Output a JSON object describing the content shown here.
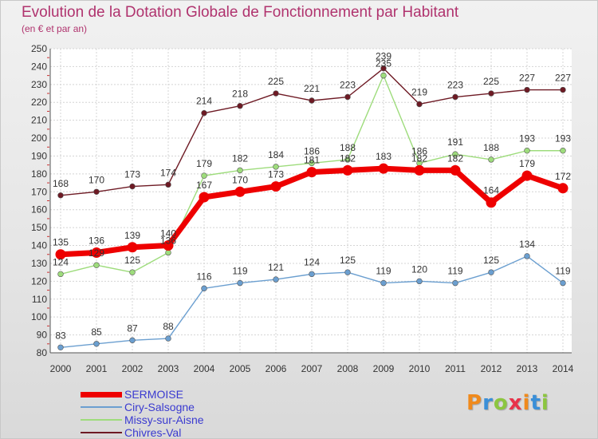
{
  "chart_data": {
    "type": "line",
    "title": "Evolution de la Dotation Globale de Fonctionnement par Habitant",
    "subtitle": "(en € et par an)",
    "xlabel": "",
    "ylabel": "",
    "categories": [
      "2000",
      "2001",
      "2002",
      "2003",
      "2004",
      "2005",
      "2006",
      "2007",
      "2008",
      "2009",
      "2010",
      "2011",
      "2012",
      "2013",
      "2014"
    ],
    "ylim": [
      80,
      250
    ],
    "yticks": [
      80,
      90,
      100,
      110,
      120,
      130,
      140,
      150,
      160,
      170,
      180,
      190,
      200,
      210,
      220,
      230,
      240,
      250
    ],
    "grid": true,
    "legend_position": "bottom-left",
    "series": [
      {
        "name": "Chivres-Val",
        "color": "#6e1a24",
        "values": [
          168,
          170,
          173,
          174,
          214,
          218,
          225,
          221,
          223,
          239,
          219,
          223,
          225,
          227,
          227
        ]
      },
      {
        "name": "Missy-sur-Aisne",
        "color": "#9edc7c",
        "values": [
          124,
          129,
          125,
          136,
          179,
          182,
          184,
          186,
          188,
          235,
          186,
          191,
          188,
          193,
          193
        ]
      },
      {
        "name": "Ciry-Salsogne",
        "color": "#6b9fd0",
        "values": [
          83,
          85,
          87,
          88,
          116,
          119,
          121,
          124,
          125,
          119,
          120,
          119,
          125,
          134,
          119
        ]
      },
      {
        "name": "SERMOISE",
        "color": "#ee0000",
        "values": [
          135,
          136,
          139,
          140,
          167,
          170,
          173,
          181,
          182,
          183,
          182,
          182,
          164,
          179,
          172
        ]
      }
    ]
  },
  "legend": [
    {
      "label": "SERMOISE",
      "color": "#ee0000",
      "text_color": "#3a3ad0"
    },
    {
      "label": "Ciry-Salsogne",
      "color": "#6b9fd0",
      "text_color": "#3a3ad0"
    },
    {
      "label": "Missy-sur-Aisne",
      "color": "#9edc7c",
      "text_color": "#3a3ad0"
    },
    {
      "label": "Chivres-Val",
      "color": "#6e1a24",
      "text_color": "#3a3ad0"
    }
  ],
  "logo": {
    "text": "Proxiti",
    "letters": [
      {
        "char": "P",
        "color": "#f08a1c"
      },
      {
        "char": "r",
        "color": "#3a8fd8"
      },
      {
        "char": "o",
        "color": "#8cc63f"
      },
      {
        "char": "x",
        "color": "#e8324a"
      },
      {
        "char": "i",
        "color": "#f08a1c"
      },
      {
        "char": "t",
        "color": "#3a8fd8"
      },
      {
        "char": "i",
        "color": "#8cc63f"
      }
    ]
  }
}
